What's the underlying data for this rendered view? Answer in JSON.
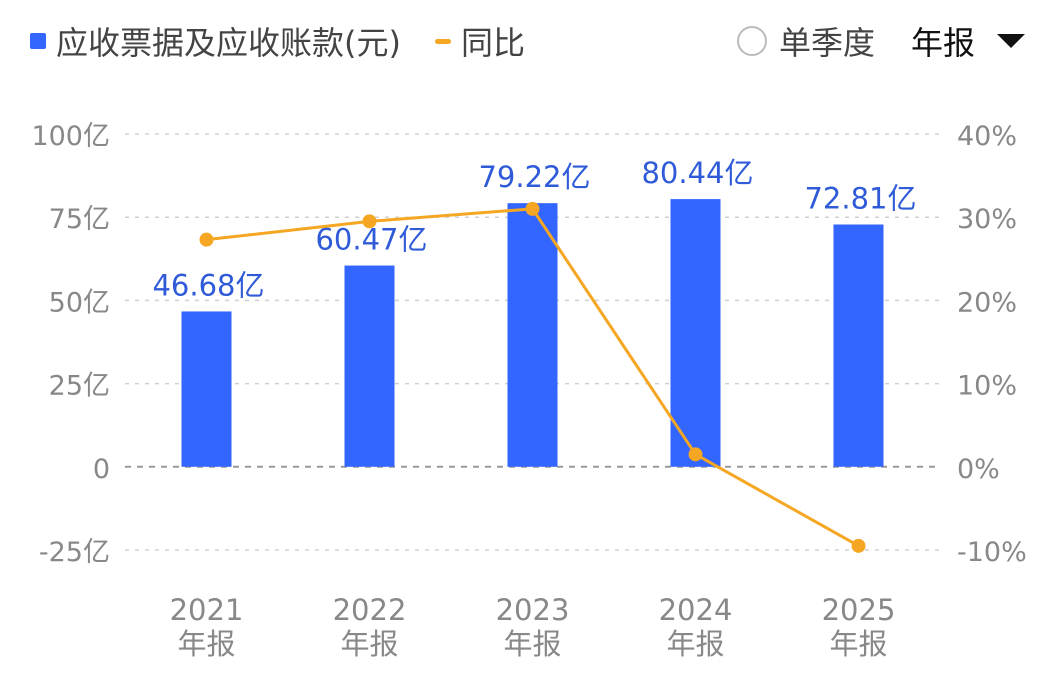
{
  "legend": {
    "bar_label": "应收票据及应收账款(元)",
    "line_label": "同比"
  },
  "controls": {
    "single_quarter_label": "单季度",
    "period_label": "年报"
  },
  "colors": {
    "bar": "#3366ff",
    "line": "#f5a623",
    "grid": "#d0d0d0",
    "axis_text": "#888888",
    "label_text": "#2f5bd8"
  },
  "chart_data": {
    "type": "bar",
    "categories": [
      "2021\n年报",
      "2022\n年报",
      "2023\n年报",
      "2024\n年报",
      "2025\n年报"
    ],
    "category_lines": [
      [
        "2021",
        "年报"
      ],
      [
        "2022",
        "年报"
      ],
      [
        "2023",
        "年报"
      ],
      [
        "2024",
        "年报"
      ],
      [
        "2025",
        "年报"
      ]
    ],
    "series": [
      {
        "name": "应收票据及应收账款(元)",
        "type": "bar",
        "axis": "left",
        "values": [
          46.68,
          60.47,
          79.22,
          80.44,
          72.81
        ],
        "labels": [
          "46.68亿",
          "60.47亿",
          "79.22亿",
          "80.44亿",
          "72.81亿"
        ]
      },
      {
        "name": "同比",
        "type": "line",
        "axis": "right",
        "values": [
          27.3,
          29.5,
          31.0,
          1.5,
          -9.5
        ]
      }
    ],
    "y_left": {
      "ticks": [
        100,
        75,
        50,
        25,
        0,
        -25
      ],
      "tick_labels": [
        "100亿",
        "75亿",
        "50亿",
        "25亿",
        "0",
        "-25亿"
      ],
      "range": [
        -25,
        100
      ]
    },
    "y_right": {
      "ticks": [
        40,
        30,
        20,
        10,
        0,
        -10
      ],
      "tick_labels": [
        "40%",
        "30%",
        "20%",
        "10%",
        "0%",
        "-10%"
      ],
      "range": [
        -10,
        40
      ]
    },
    "grid": true,
    "legend_position": "top-left"
  }
}
